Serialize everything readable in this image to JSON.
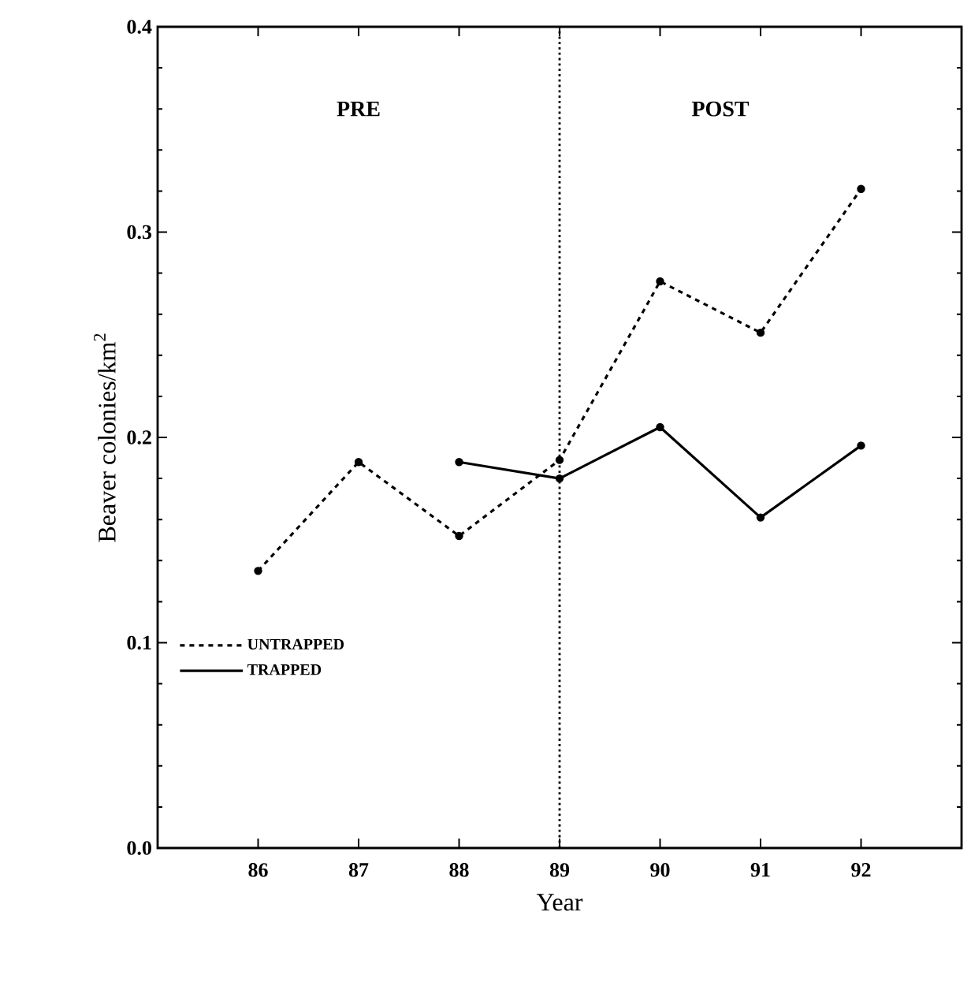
{
  "chart_data": {
    "type": "line",
    "xlabel": "Year",
    "ylabel": "Beaver colonies/km$^{2}$",
    "x": [
      86,
      87,
      88,
      89,
      90,
      91,
      92
    ],
    "series": [
      {
        "name": "UNTRAPPED",
        "color": "#000000",
        "line_style": "dashed",
        "values": [
          0.135,
          0.188,
          0.152,
          0.189,
          0.276,
          0.251,
          0.321
        ]
      },
      {
        "name": "TRAPPED",
        "color": "#000000",
        "line_style": "solid",
        "values": [
          null,
          null,
          0.188,
          0.18,
          0.205,
          0.161,
          0.196
        ]
      }
    ],
    "xlim": [
      85,
      93
    ],
    "ylim": [
      0,
      0.4
    ],
    "xticks": [
      86,
      87,
      88,
      89,
      90,
      91,
      92
    ],
    "yticks": [
      {
        "value": 0,
        "label": "0.0"
      },
      0.1,
      0.2,
      0.3,
      0.4
    ],
    "ref_lines": [
      {
        "axis": "x",
        "value": 89,
        "line_style": "dotted"
      }
    ],
    "annotations": [
      "PRE",
      "POST"
    ],
    "marker": "circle",
    "legend": "bottom left",
    "grid": false
  }
}
